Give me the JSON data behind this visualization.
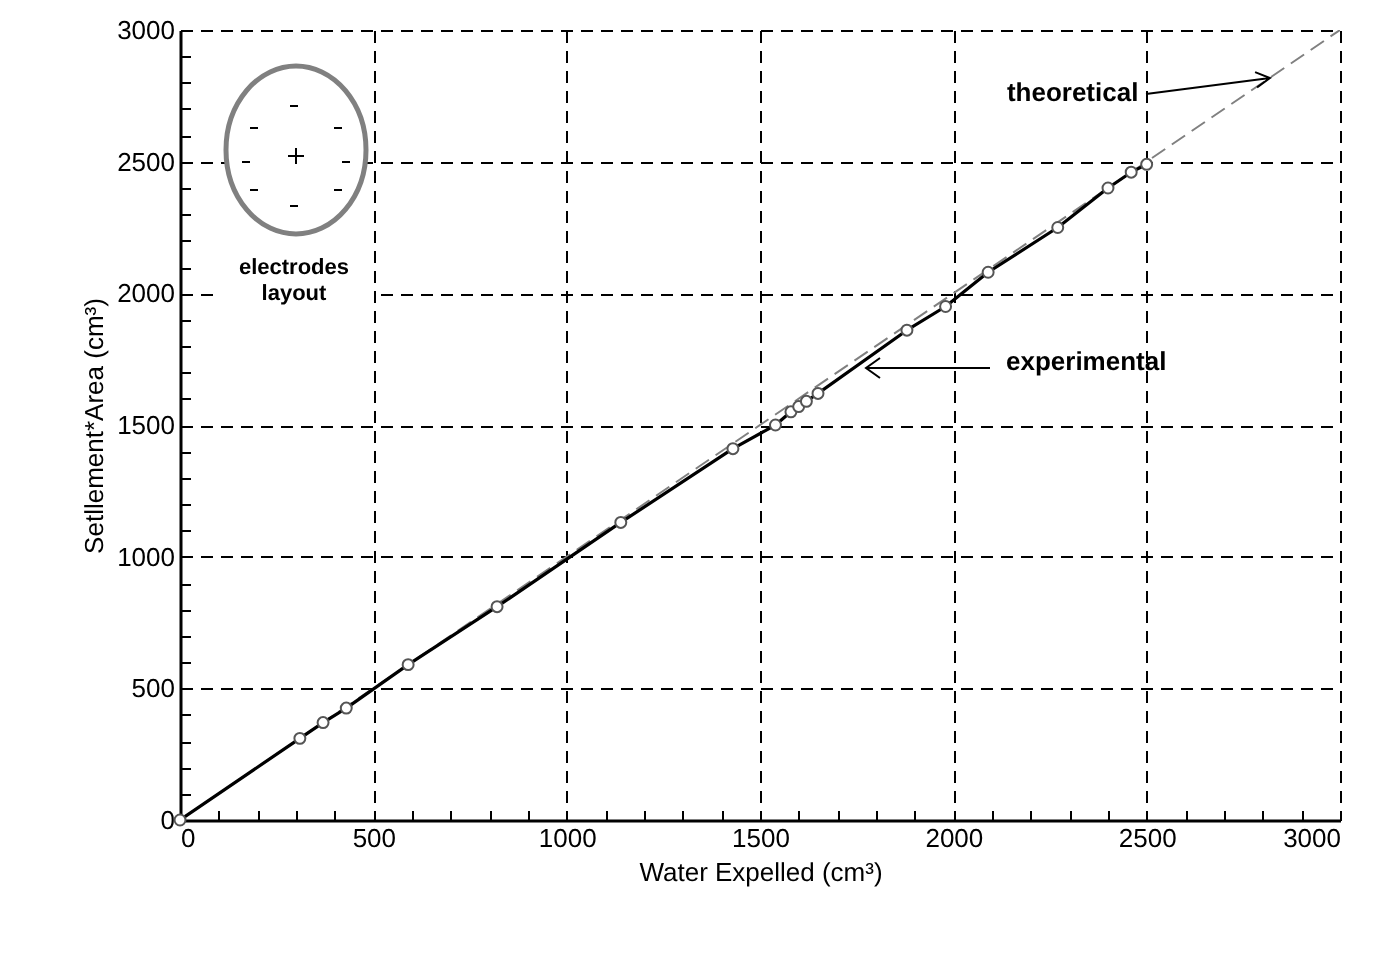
{
  "chart_data": {
    "type": "line",
    "xlabel": "Water Expelled (cm³)",
    "ylabel": "Setllement*Area (cm³)",
    "xlim": [
      0,
      3000
    ],
    "ylim": [
      0,
      3000
    ],
    "xticks": [
      0,
      {
        "value": 100,
        "label": null
      },
      {
        "value": 200,
        "label": null
      },
      {
        "value": 300,
        "label": null
      },
      {
        "value": 400,
        "label": null
      },
      500,
      {
        "value": 600,
        "label": null
      },
      {
        "value": 700,
        "label": null
      },
      {
        "value": 800,
        "label": null
      },
      {
        "value": 900,
        "label": null
      },
      1000,
      {
        "value": 1100,
        "label": null
      },
      {
        "value": 1200,
        "label": null
      },
      {
        "value": 1300,
        "label": null
      },
      {
        "value": 1400,
        "label": null
      },
      1500,
      {
        "value": 1600,
        "label": null
      },
      {
        "value": 1700,
        "label": null
      },
      {
        "value": 1800,
        "label": null
      },
      {
        "value": 1900,
        "label": null
      },
      2000,
      {
        "value": 2100,
        "label": null
      },
      {
        "value": 2200,
        "label": null
      },
      {
        "value": 2300,
        "label": null
      },
      {
        "value": 2400,
        "label": null
      },
      2500,
      {
        "value": 2600,
        "label": null
      },
      {
        "value": 2700,
        "label": null
      },
      {
        "value": 2800,
        "label": null
      },
      {
        "value": 2900,
        "label": null
      },
      3000
    ],
    "yticks": [
      0,
      {
        "value": 100,
        "label": null
      },
      {
        "value": 200,
        "label": null
      },
      {
        "value": 300,
        "label": null
      },
      {
        "value": 400,
        "label": null
      },
      500,
      {
        "value": 600,
        "label": null
      },
      {
        "value": 700,
        "label": null
      },
      {
        "value": 800,
        "label": null
      },
      {
        "value": 900,
        "label": null
      },
      1000,
      {
        "value": 1100,
        "label": null
      },
      {
        "value": 1200,
        "label": null
      },
      {
        "value": 1300,
        "label": null
      },
      {
        "value": 1400,
        "label": null
      },
      1500,
      {
        "value": 1600,
        "label": null
      },
      {
        "value": 1700,
        "label": null
      },
      {
        "value": 1800,
        "label": null
      },
      {
        "value": 1900,
        "label": null
      },
      2000,
      {
        "value": 2100,
        "label": null
      },
      {
        "value": 2200,
        "label": null
      },
      {
        "value": 2300,
        "label": null
      },
      {
        "value": 2400,
        "label": null
      },
      2500,
      {
        "value": 2600,
        "label": null
      },
      {
        "value": 2700,
        "label": null
      },
      {
        "value": 2800,
        "label": null
      },
      {
        "value": 2900,
        "label": null
      },
      3000
    ],
    "grid": true,
    "series": [
      {
        "color": "#808080",
        "line_style": "dashed",
        "x": [
          0,
          3000
        ],
        "values": [
          0,
          3000
        ]
      },
      {
        "color": "#000000",
        "line_style": "solid",
        "marker": "circle",
        "x": [
          0,
          310,
          370,
          430,
          590,
          820,
          1140,
          1430,
          1540,
          1580,
          1600,
          1620,
          1650,
          1880,
          1980,
          2090,
          2270,
          2400,
          2460,
          2500
        ],
        "values": [
          0,
          310,
          370,
          425,
          590,
          810,
          1130,
          1410,
          1500,
          1550,
          1570,
          1590,
          1620,
          1860,
          1950,
          2080,
          2250,
          2400,
          2460,
          2490
        ]
      }
    ],
    "annotations": [
      {
        "text": "theoretical",
        "x": 2820,
        "y": 2820
      },
      "experimental",
      "electrodes layout"
    ]
  }
}
